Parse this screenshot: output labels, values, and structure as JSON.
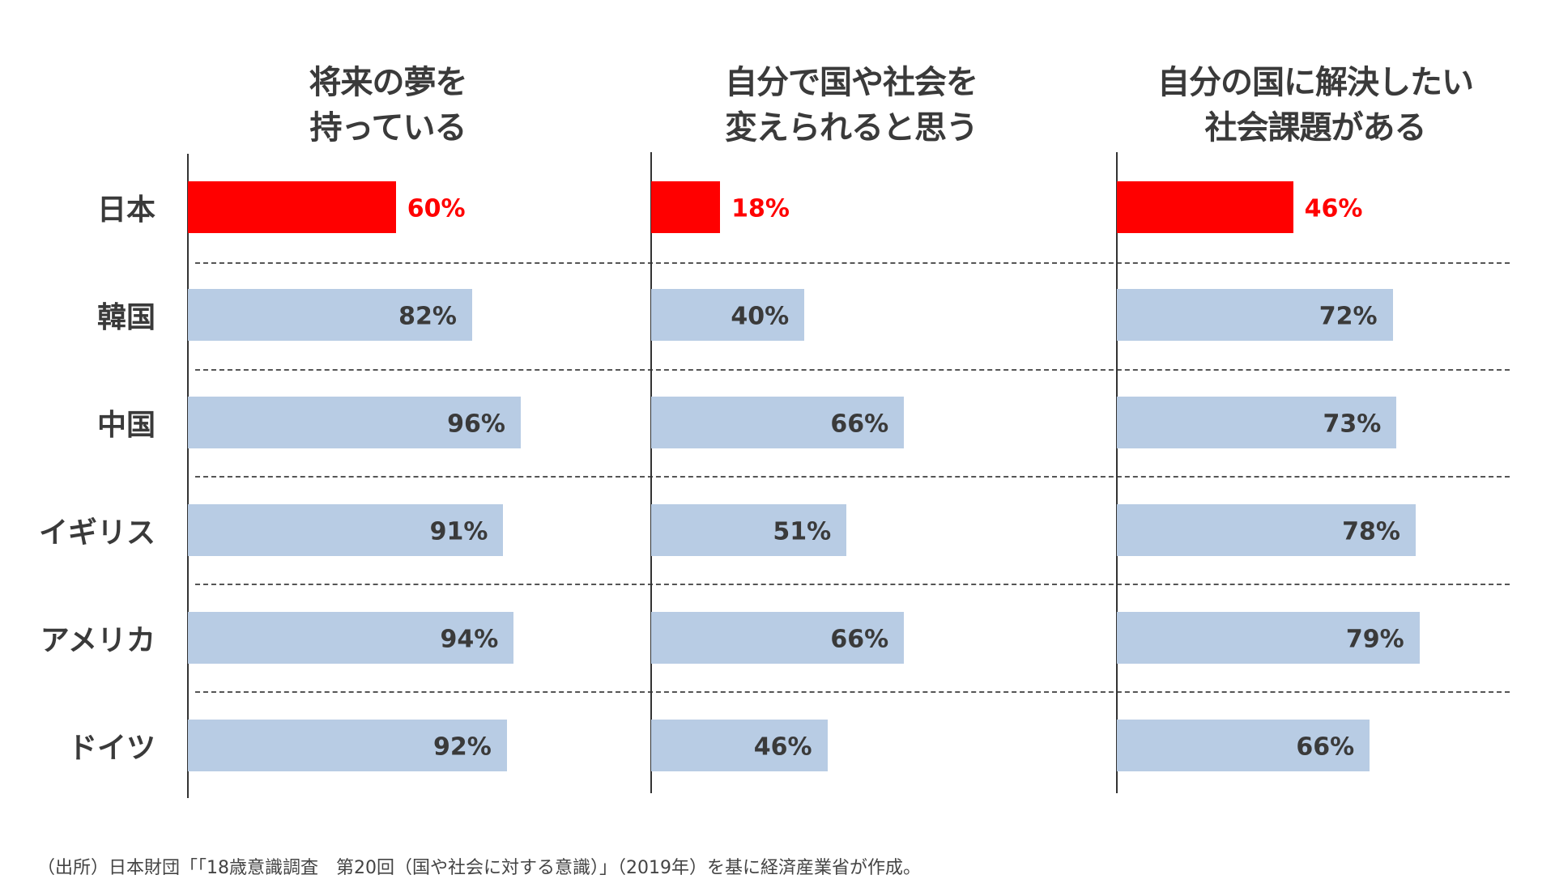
{
  "chart_data": {
    "type": "bar",
    "orientation": "horizontal",
    "categories": [
      "日本",
      "韓国",
      "中国",
      "イギリス",
      "アメリカ",
      "ドイツ"
    ],
    "panels": [
      {
        "title_lines": [
          "将来の夢を",
          "持っている"
        ],
        "values": [
          60,
          82,
          96,
          91,
          94,
          92
        ],
        "labels": [
          "60%",
          "82%",
          "96%",
          "91%",
          "94%",
          "92%"
        ]
      },
      {
        "title_lines": [
          "自分で国や社会を",
          "変えられると思う"
        ],
        "values": [
          18,
          40,
          66,
          51,
          66,
          46
        ],
        "labels": [
          "18%",
          "40%",
          "66%",
          "51%",
          "66%",
          "46%"
        ]
      },
      {
        "title_lines": [
          "自分の国に解決したい",
          "社会課題がある"
        ],
        "values": [
          46,
          72,
          73,
          78,
          79,
          66
        ],
        "labels": [
          "46%",
          "72%",
          "73%",
          "78%",
          "79%",
          "66%"
        ]
      }
    ],
    "unit": "%",
    "highlight_category": "日本",
    "colors": {
      "highlight": "#ff0000",
      "default": "#b8cce4",
      "label_default": "#3a3a3a"
    }
  },
  "footer": {
    "source": "（出所）日本財団「「18歳意識調査　第20回（国や社会に対する意識）」（2019年）を基に経済産業省が作成。"
  }
}
